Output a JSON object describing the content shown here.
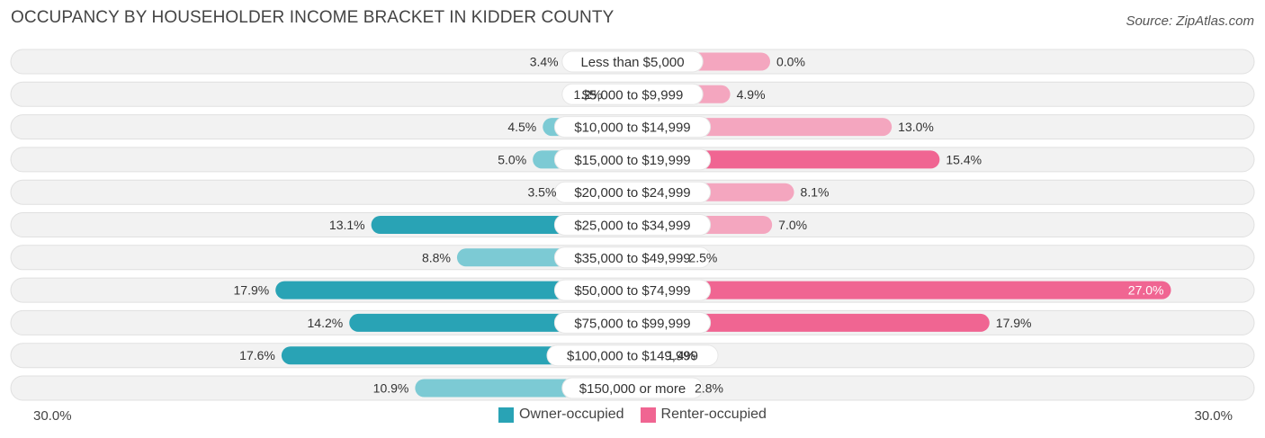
{
  "header": {
    "title": "OCCUPANCY BY HOUSEHOLDER INCOME BRACKET IN KIDDER COUNTY",
    "source": "Source: ZipAtlas.com"
  },
  "colors": {
    "owner": "#29a3b5",
    "owner_light": "#7ccad4",
    "renter": "#f06592",
    "renter_light": "#f4a6bf",
    "row_bg": "#f2f2f2",
    "row_border": "#e0e0e0"
  },
  "chart_data": {
    "type": "bar",
    "orientation": "horizontal-diverging",
    "title": "OCCUPANCY BY HOUSEHOLDER INCOME BRACKET IN KIDDER COUNTY",
    "axis_min_label": "30.0%",
    "axis_max_label": "30.0%",
    "xlim": [
      -30,
      30
    ],
    "categories": [
      "Less than $5,000",
      "$5,000 to $9,999",
      "$10,000 to $14,999",
      "$15,000 to $19,999",
      "$20,000 to $24,999",
      "$25,000 to $34,999",
      "$35,000 to $49,999",
      "$50,000 to $74,999",
      "$75,000 to $99,999",
      "$100,000 to $149,999",
      "$150,000 or more"
    ],
    "series": [
      {
        "name": "Owner-occupied",
        "values": [
          3.4,
          1.2,
          4.5,
          5.0,
          3.5,
          13.1,
          8.8,
          17.9,
          14.2,
          17.6,
          10.9
        ],
        "labels": [
          "3.4%",
          "1.2%",
          "4.5%",
          "5.0%",
          "3.5%",
          "13.1%",
          "8.8%",
          "17.9%",
          "14.2%",
          "17.6%",
          "10.9%"
        ]
      },
      {
        "name": "Renter-occupied",
        "values": [
          0.0,
          4.9,
          13.0,
          15.4,
          8.1,
          7.0,
          2.5,
          27.0,
          17.9,
          1.4,
          2.8
        ],
        "labels": [
          "0.0%",
          "4.9%",
          "13.0%",
          "15.4%",
          "8.1%",
          "7.0%",
          "2.5%",
          "27.0%",
          "17.9%",
          "1.4%",
          "2.8%"
        ]
      }
    ],
    "legend": [
      {
        "name": "Owner-occupied",
        "color": "#29a3b5"
      },
      {
        "name": "Renter-occupied",
        "color": "#f06592"
      }
    ]
  }
}
